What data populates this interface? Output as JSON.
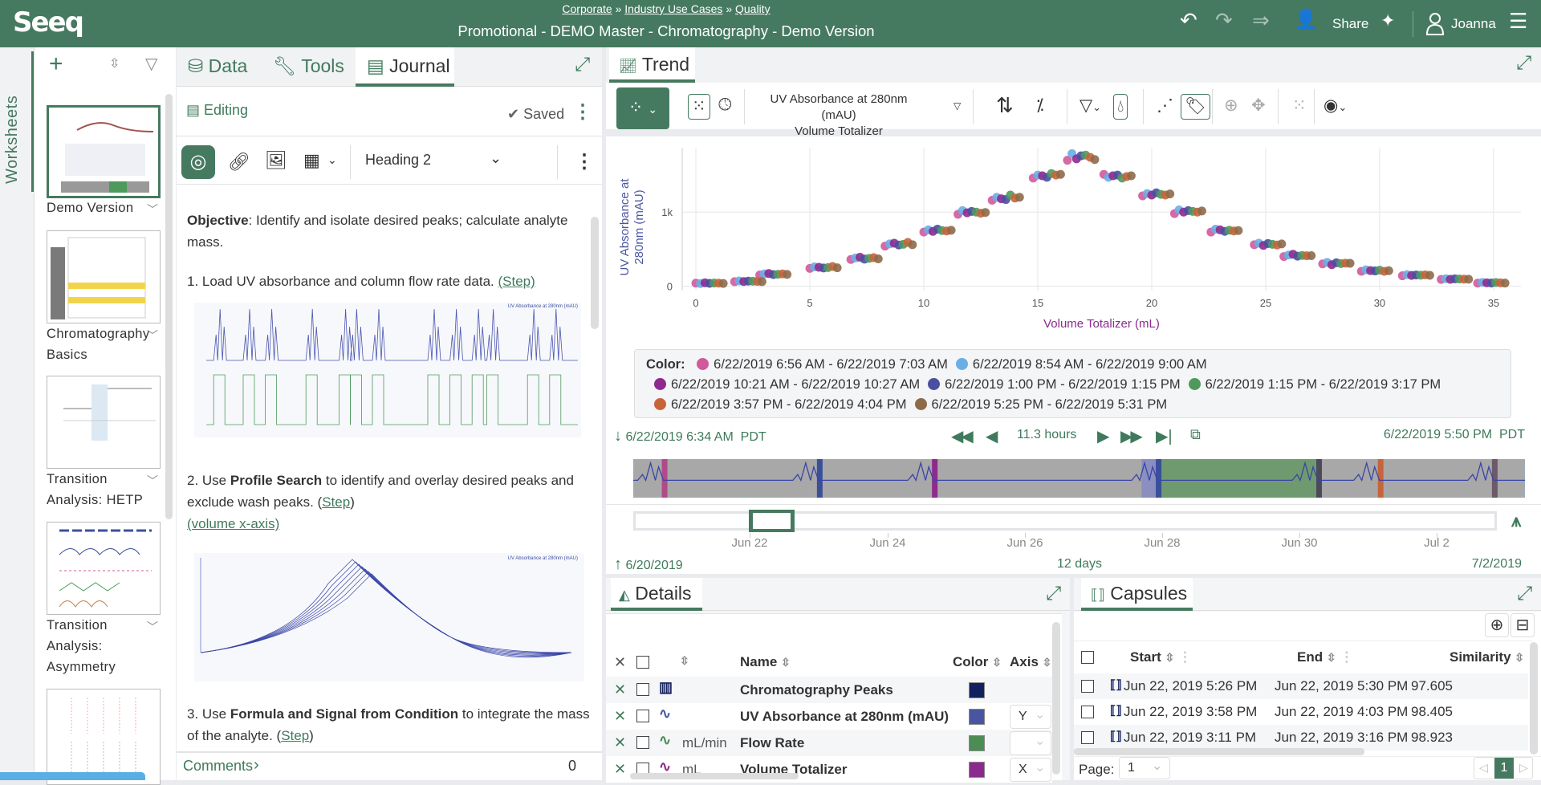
{
  "header": {
    "logo": "Seeq",
    "breadcrumbs": [
      "Corporate",
      "Industry Use Cases",
      "Quality"
    ],
    "breadcrumb_sep": "»",
    "title": "Promotional - DEMO Master - Chromatography - Demo Version",
    "share_label": "Share",
    "user_name": "Joanna",
    "icons": [
      "undo-icon",
      "redo-icon",
      "redo-all-icon",
      "share-user-icon",
      "sparkle-icon",
      "user-icon",
      "hamburger-icon"
    ]
  },
  "worksheets": {
    "strip_label": "Worksheets",
    "items": [
      {
        "name": "Demo Version",
        "selected": true
      },
      {
        "name": "Chromatography Basics"
      },
      {
        "name": "Transition Analysis: HETP"
      },
      {
        "name": "Transition Analysis: Asymmetry"
      },
      {
        "name": ""
      }
    ]
  },
  "journal_panel": {
    "tabs": [
      {
        "label": "Data"
      },
      {
        "label": "Tools"
      },
      {
        "label": "Journal",
        "active": true
      }
    ],
    "editing_label": "Editing",
    "saved_label": "Saved",
    "format_select": "Heading 2",
    "content": {
      "objective_bold": "Objective",
      "objective_text": ": Identify and isolate desired peaks; calculate analyte mass.",
      "step1_text": "1. Load UV absorbance and column flow rate data. ",
      "step1_link": "(Step)",
      "step2_pre": "2. Use ",
      "step2_bold": "Profile Search",
      "step2_text": " to identify  and overlay desired peaks and exclude wash peaks. (",
      "step2_link": "Step",
      "step2_close": ")",
      "step2_link2": "(volume x-axis)",
      "step3_pre": "3. Use ",
      "step3_bold": "Formula and Signal from Condition",
      "step3_text": " to integrate the mass of the analyte. (",
      "step3_link": "Step",
      "step3_close": ")",
      "image1_label": "UV Absorbance at 280nm (mAU)",
      "image2_label": "UV Absorbance at 280nm (mAU)"
    },
    "comments_label": "Comments",
    "comments_count": "0"
  },
  "trend": {
    "tab_label": "Trend",
    "signal_labels": [
      "UV Absorbance at 280nm (mAU)",
      "Volume Totalizer"
    ],
    "legend_title": "Color:",
    "display_start": "6/22/2019 6:34 AM  PDT",
    "display_duration": "11.3 hours",
    "display_end": "6/22/2019 5:50 PM  PDT",
    "investigate_ticks": [
      "Jun 22",
      "Jun 24",
      "Jun 26",
      "Jun 28",
      "Jun 30",
      "Jul 2"
    ],
    "investigate_start": "6/20/2019",
    "investigate_duration": "12 days",
    "investigate_end": "7/2/2019"
  },
  "chart_data": {
    "type": "scatter",
    "xlabel": "Volume Totalizer (mL)",
    "ylabel": "UV Absorbance at 280nm (mAU)",
    "xticks": [
      0,
      5,
      10,
      15,
      20,
      25,
      30,
      35
    ],
    "yticks": [
      {
        "value": 0,
        "label": "0"
      },
      {
        "value": 1000,
        "label": "1k"
      }
    ],
    "xlim": [
      -0.6,
      36.2
    ],
    "ylim": [
      -60,
      1870
    ],
    "grid": true,
    "legend_placement": "bottom",
    "series": [
      {
        "name": "6/22/2019 6:56 AM - 6/22/2019 7:03 AM",
        "color": "#d05a9b",
        "x": [
          0.0,
          1.7,
          2.8,
          5.0,
          6.8,
          8.3,
          10.0,
          11.5,
          13.0,
          14.8,
          16.3,
          17.9,
          19.6,
          21.0,
          22.6,
          24.5,
          25.8,
          27.5,
          29.2,
          31.0,
          32.7,
          34.3
        ],
        "y": [
          40,
          60,
          150,
          240,
          360,
          540,
          730,
          970,
          1160,
          1460,
          1700,
          1510,
          1220,
          980,
          730,
          560,
          400,
          300,
          200,
          140,
          90,
          40
        ]
      },
      {
        "name": "6/22/2019 8:54 AM - 6/22/2019 9:00 AM",
        "color": "#6aaee6",
        "x": [
          0.2,
          1.9,
          3.0,
          5.2,
          7.0,
          8.5,
          10.2,
          11.7,
          13.2,
          15.0,
          16.5,
          18.1,
          19.8,
          21.2,
          22.8,
          24.7,
          26.0,
          27.7,
          29.4,
          31.2,
          32.9,
          34.5
        ],
        "y": [
          35,
          70,
          165,
          260,
          380,
          570,
          760,
          1020,
          1200,
          1500,
          1790,
          1470,
          1250,
          1030,
          770,
          580,
          420,
          320,
          220,
          155,
          100,
          50
        ]
      },
      {
        "name": "6/22/2019 10:21 AM - 6/22/2019 10:27 AM",
        "color": "#8e2a8e",
        "x": [
          0.4,
          2.1,
          3.2,
          5.4,
          7.2,
          8.7,
          10.4,
          11.9,
          13.4,
          15.2,
          16.7,
          18.3,
          20.0,
          21.4,
          23.0,
          24.9,
          26.2,
          27.9,
          29.6,
          31.4,
          33.1,
          34.7
        ],
        "y": [
          45,
          62,
          170,
          255,
          390,
          580,
          740,
          990,
          1180,
          1490,
          1720,
          1490,
          1230,
          1000,
          760,
          550,
          430,
          290,
          210,
          145,
          92,
          45
        ]
      },
      {
        "name": "6/22/2019 1:00 PM - 6/22/2019 1:15 PM",
        "color": "#4a4fa0",
        "x": [
          0.6,
          2.3,
          3.4,
          5.6,
          7.4,
          8.9,
          10.6,
          12.1,
          13.6,
          15.4,
          16.9,
          18.5,
          20.2,
          21.6,
          23.2,
          25.1,
          26.4,
          28.1,
          29.8,
          31.6,
          33.3,
          34.9
        ],
        "y": [
          38,
          68,
          155,
          245,
          365,
          555,
          770,
          1010,
          1170,
          1470,
          1760,
          1500,
          1260,
          1020,
          740,
          575,
          405,
          315,
          205,
          150,
          98,
          42
        ]
      },
      {
        "name": "6/22/2019 1:15 PM - 6/22/2019 3:17 PM",
        "color": "#4e9a5c",
        "x": [
          0.8,
          2.5,
          3.6,
          5.8,
          7.6,
          9.1,
          10.8,
          12.3,
          13.8,
          15.6,
          17.1,
          18.7,
          20.4,
          21.8,
          23.4,
          25.3,
          26.6,
          28.3,
          30.0,
          31.8,
          33.5,
          35.1
        ],
        "y": [
          42,
          66,
          160,
          250,
          375,
          565,
          750,
          1000,
          1230,
          1520,
          1770,
          1460,
          1240,
          1010,
          755,
          565,
          415,
          305,
          215,
          148,
          96,
          48
        ]
      },
      {
        "name": "6/22/2019 3:57 PM - 6/22/2019 4:04 PM",
        "color": "#c8643a",
        "x": [
          1.0,
          2.7,
          3.8,
          6.0,
          7.8,
          9.3,
          11.0,
          12.5,
          14.0,
          15.8,
          17.3,
          18.9,
          20.6,
          22.0,
          23.6,
          25.5,
          26.8,
          28.5,
          30.2,
          32.0,
          33.7,
          35.3
        ],
        "y": [
          40,
          64,
          165,
          265,
          385,
          590,
          745,
          985,
          1190,
          1500,
          1740,
          1480,
          1230,
          1000,
          745,
          555,
          410,
          310,
          200,
          152,
          94,
          44
        ]
      },
      {
        "name": "6/22/2019 5:25 PM - 6/22/2019 5:31 PM",
        "color": "#8e6a4a",
        "x": [
          1.2,
          2.9,
          4.0,
          6.2,
          8.0,
          9.5,
          11.2,
          12.7,
          14.2,
          16.0,
          17.5,
          19.1,
          20.8,
          22.2,
          23.8,
          25.7,
          27.0,
          28.7,
          30.4,
          32.2,
          33.9,
          35.5
        ],
        "y": [
          36,
          61,
          158,
          248,
          368,
          560,
          755,
          995,
          1200,
          1510,
          1710,
          1490,
          1245,
          1015,
          750,
          570,
          412,
          308,
          208,
          146,
          93,
          41
        ]
      }
    ]
  },
  "details": {
    "tab_label": "Details",
    "columns": {
      "name": "Name",
      "color": "Color",
      "axis": "Axis"
    },
    "rows": [
      {
        "unit": "",
        "name": "Chromatography Peaks",
        "color": "#13205e",
        "axis": "",
        "icon": "capsule-icon",
        "icon_color": "#13205e"
      },
      {
        "unit": "",
        "name": "UV Absorbance at 280nm (mAU)",
        "color": "#4a55a2",
        "axis": "Y",
        "icon": "signal-icon",
        "icon_color": "#4a55a2"
      },
      {
        "unit": "mL/min",
        "name": "Flow Rate",
        "color": "#4e8c56",
        "axis": "",
        "icon": "signal-icon",
        "icon_color": "#4e8c56"
      },
      {
        "unit": "mL",
        "name": "Volume Totalizer",
        "color": "#8a2a8e",
        "axis": "X",
        "icon": "signal-icon",
        "icon_color": "#8a2a8e"
      }
    ]
  },
  "capsules": {
    "tab_label": "Capsules",
    "columns": {
      "start": "Start",
      "end": "End",
      "similarity": "Similarity"
    },
    "rows": [
      {
        "start": "Jun 22, 2019 5:26 PM",
        "end": "Jun 22, 2019 5:30 PM",
        "similarity": "97.605"
      },
      {
        "start": "Jun 22, 2019 3:58 PM",
        "end": "Jun 22, 2019 4:03 PM",
        "similarity": "98.405"
      },
      {
        "start": "Jun 22, 2019 3:11 PM",
        "end": "Jun 22, 2019 3:16 PM",
        "similarity": "98.923"
      }
    ],
    "page_label": "Page:",
    "page_value": "1",
    "current_page": "1"
  },
  "colors": {
    "brand": "#467a60",
    "accent_text": "#3f7a5c"
  }
}
